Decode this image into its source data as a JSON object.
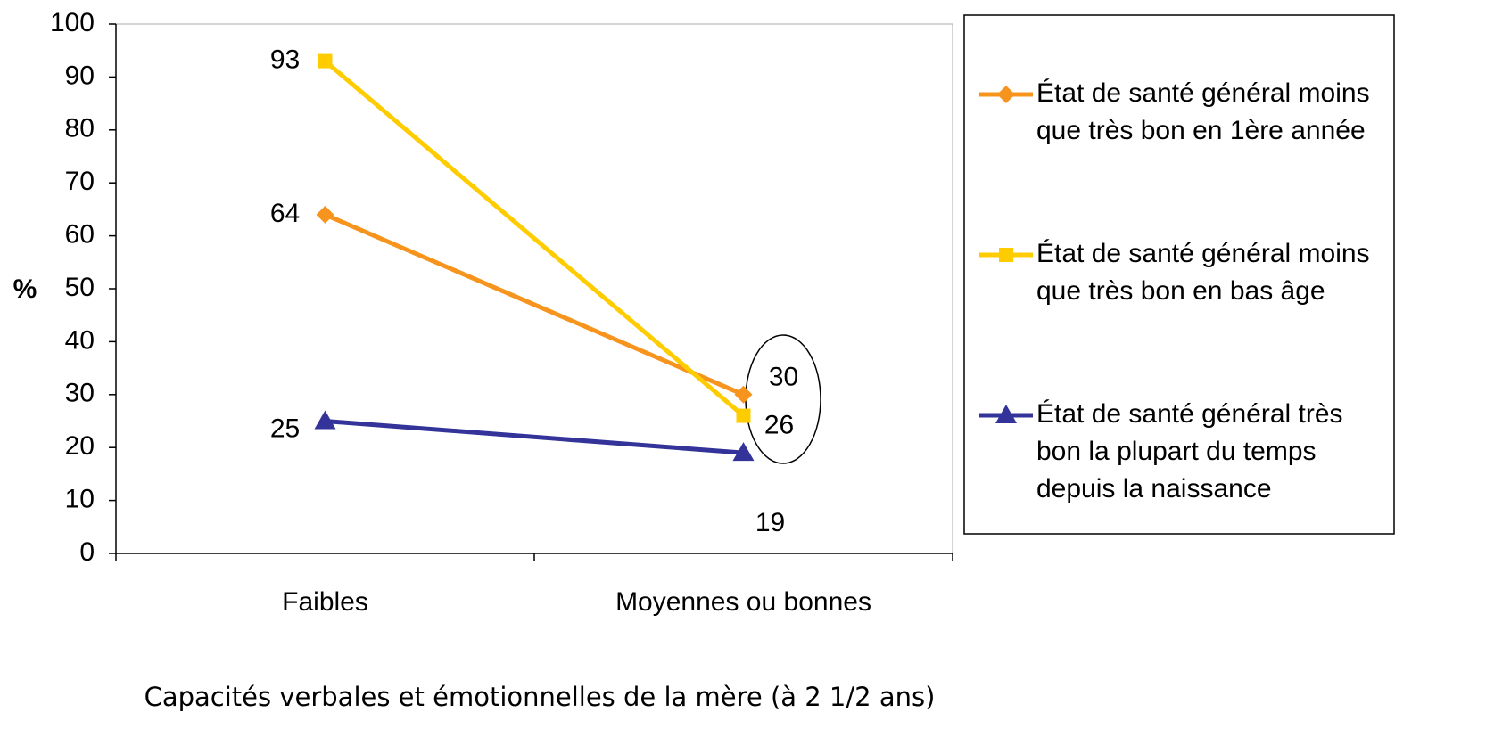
{
  "chart_data": {
    "type": "line",
    "x_label": "Capacités verbales et émotionnelles de la mère (à 2 1/2 ans)",
    "y_label": "%",
    "categories": [
      "Faibles",
      "Moyennes ou bonnes"
    ],
    "series": [
      {
        "name": "État de santé général moins que très bon en 1ère année",
        "color": "#f7941d",
        "marker": "diamond",
        "values": [
          64,
          30
        ]
      },
      {
        "name": "État de santé général moins que très bon en bas âge",
        "color": "#ffcc00",
        "marker": "square",
        "values": [
          93,
          26
        ]
      },
      {
        "name": "État de santé général très bon la plupart du temps depuis la naissance",
        "color": "#333399",
        "marker": "triangle",
        "values": [
          25,
          19
        ]
      }
    ],
    "ylim": [
      0,
      100
    ],
    "yticks": [
      0,
      10,
      20,
      30,
      40,
      50,
      60,
      70,
      80,
      90,
      100
    ],
    "grid": false,
    "legend": "right"
  }
}
